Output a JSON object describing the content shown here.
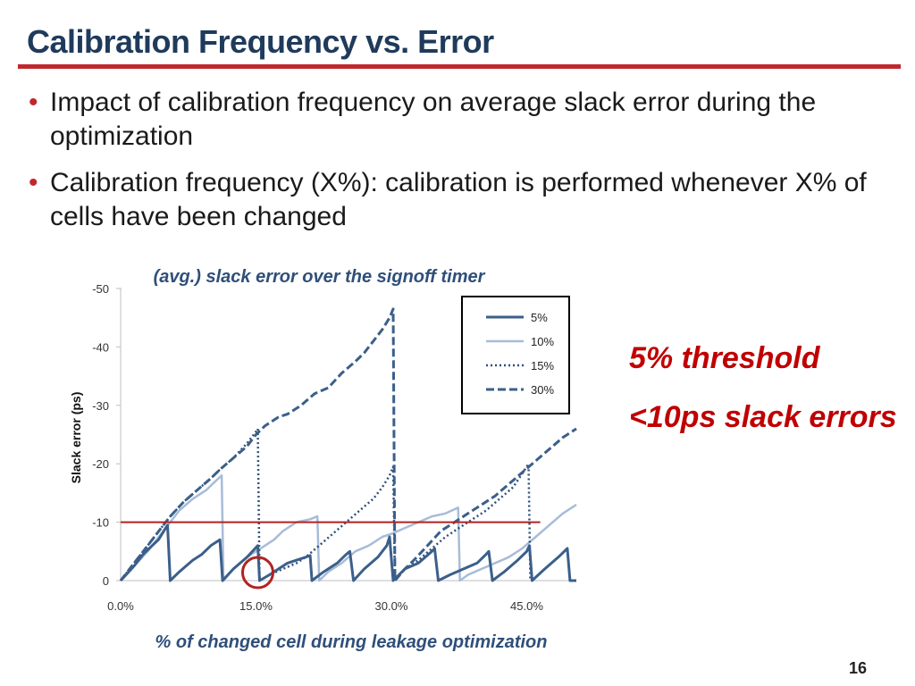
{
  "slide": {
    "title": "Calibration Frequency vs. Error",
    "bullets": [
      "Impact of calibration frequency on average slack error during the optimization",
      "Calibration frequency (X%): calibration is performed whenever X% of cells have been changed"
    ],
    "callouts": [
      "5% threshold",
      "<10ps slack errors"
    ],
    "page_number": "16",
    "accent_color": "#c0282d",
    "title_color": "#1f3b5c"
  },
  "chart_data": {
    "type": "line",
    "title": "(avg.) slack error over the signoff timer",
    "xlabel": "% of changed cell during leakage optimization",
    "ylabel": "Slack error (ps)",
    "xlim": [
      0,
      50.5
    ],
    "ylim": [
      0,
      -50
    ],
    "x_ticks": [
      0,
      15,
      30,
      45
    ],
    "x_tick_labels": [
      "0.0%",
      "15.0%",
      "30.0%",
      "45.0%"
    ],
    "y_ticks": [
      0,
      -10,
      -20,
      -30,
      -40,
      -50
    ],
    "y_tick_labels": [
      "0",
      "-10",
      "-20",
      "-30",
      "-40",
      "-50"
    ],
    "grid": false,
    "legend_position": "top-right",
    "threshold": {
      "y": -10,
      "x_end": 46.5,
      "color": "#b22222"
    },
    "highlight": {
      "x": 15,
      "y": 0,
      "color": "#b22222"
    },
    "series": [
      {
        "name": "5%",
        "style": "solid",
        "color": "#3b5f8a",
        "points": [
          [
            0,
            0
          ],
          [
            0.6,
            -1
          ],
          [
            1.5,
            -2.5
          ],
          [
            2.5,
            -4.5
          ],
          [
            3.5,
            -6
          ],
          [
            4.2,
            -7
          ],
          [
            5,
            -9
          ],
          [
            5.2,
            -9.5
          ],
          [
            5.5,
            0
          ],
          [
            6.5,
            -1.5
          ],
          [
            8,
            -3.5
          ],
          [
            9,
            -4.5
          ],
          [
            10,
            -6
          ],
          [
            11,
            -7
          ],
          [
            11.3,
            0
          ],
          [
            12.5,
            -2
          ],
          [
            14,
            -4
          ],
          [
            15.2,
            -6
          ],
          [
            15.4,
            0
          ],
          [
            16.5,
            -1
          ],
          [
            17.5,
            -2
          ],
          [
            18.5,
            -3
          ],
          [
            19.5,
            -3.5
          ],
          [
            20.5,
            -4
          ],
          [
            21,
            -4.3
          ],
          [
            21.2,
            0
          ],
          [
            22.5,
            -1.5
          ],
          [
            24,
            -3
          ],
          [
            25,
            -4.5
          ],
          [
            25.4,
            -5
          ],
          [
            25.8,
            0
          ],
          [
            27,
            -2
          ],
          [
            28.5,
            -4
          ],
          [
            29.5,
            -6
          ],
          [
            29.8,
            -7.5
          ],
          [
            30.2,
            0
          ],
          [
            31.5,
            -2
          ],
          [
            33,
            -3
          ],
          [
            34.5,
            -5
          ],
          [
            34.8,
            -5.5
          ],
          [
            35.2,
            0
          ],
          [
            36.5,
            -1
          ],
          [
            38,
            -2
          ],
          [
            39.5,
            -3
          ],
          [
            40.5,
            -4.5
          ],
          [
            40.8,
            -5
          ],
          [
            41.2,
            0
          ],
          [
            42.5,
            -1.5
          ],
          [
            44,
            -3.5
          ],
          [
            45,
            -5
          ],
          [
            45.3,
            -6
          ],
          [
            45.6,
            0
          ],
          [
            47,
            -2
          ],
          [
            48.5,
            -4
          ],
          [
            49.5,
            -5.5
          ],
          [
            49.8,
            0
          ],
          [
            50.5,
            0
          ]
        ]
      },
      {
        "name": "10%",
        "style": "solid",
        "color": "#a7bcd8",
        "points": [
          [
            0,
            0
          ],
          [
            1.5,
            -2.5
          ],
          [
            3,
            -5
          ],
          [
            4,
            -7
          ],
          [
            5,
            -9
          ],
          [
            6.5,
            -12
          ],
          [
            8,
            -14
          ],
          [
            9.5,
            -15.5
          ],
          [
            10.5,
            -17
          ],
          [
            11.2,
            -18
          ],
          [
            11.4,
            0
          ],
          [
            12.5,
            -2
          ],
          [
            14,
            -4
          ],
          [
            15,
            -5
          ],
          [
            16,
            -6
          ],
          [
            17,
            -7
          ],
          [
            18,
            -8.5
          ],
          [
            19.5,
            -10
          ],
          [
            21,
            -10.5
          ],
          [
            21.8,
            -11
          ],
          [
            22,
            0
          ],
          [
            23,
            -1.5
          ],
          [
            24.5,
            -3
          ],
          [
            26,
            -5
          ],
          [
            27.5,
            -6
          ],
          [
            29,
            -7.5
          ],
          [
            30,
            -8
          ],
          [
            31.5,
            -9
          ],
          [
            33,
            -10
          ],
          [
            34.5,
            -11
          ],
          [
            36,
            -11.5
          ],
          [
            37.4,
            -12.5
          ],
          [
            37.6,
            0
          ],
          [
            38.5,
            -1
          ],
          [
            40,
            -2
          ],
          [
            41.5,
            -3
          ],
          [
            43,
            -4
          ],
          [
            44.5,
            -5.5
          ],
          [
            46,
            -7.5
          ],
          [
            47.5,
            -9.5
          ],
          [
            49,
            -11.5
          ],
          [
            50,
            -12.5
          ],
          [
            50.5,
            -13
          ]
        ]
      },
      {
        "name": "15%",
        "style": "dotted",
        "color": "#2f507a",
        "points": [
          [
            0,
            0
          ],
          [
            1.5,
            -3
          ],
          [
            3,
            -6
          ],
          [
            4.5,
            -9
          ],
          [
            5.5,
            -11
          ],
          [
            7,
            -13.5
          ],
          [
            8.5,
            -15.5
          ],
          [
            10,
            -17.5
          ],
          [
            11,
            -19
          ],
          [
            12.5,
            -21
          ],
          [
            14,
            -23.5
          ],
          [
            15,
            -25.5
          ],
          [
            15.2,
            -26
          ],
          [
            15.4,
            0
          ],
          [
            16.5,
            -1
          ],
          [
            18,
            -2
          ],
          [
            19.5,
            -3
          ],
          [
            20.5,
            -4
          ],
          [
            22,
            -6
          ],
          [
            23.5,
            -8
          ],
          [
            25,
            -10
          ],
          [
            26.5,
            -12
          ],
          [
            28,
            -14
          ],
          [
            29,
            -16
          ],
          [
            29.8,
            -18
          ],
          [
            30.2,
            -19.5
          ],
          [
            30.4,
            0
          ],
          [
            31.5,
            -2
          ],
          [
            33,
            -3.5
          ],
          [
            34.5,
            -5.5
          ],
          [
            36,
            -7.5
          ],
          [
            37.5,
            -9
          ],
          [
            39,
            -10.5
          ],
          [
            40.5,
            -12
          ],
          [
            42,
            -14
          ],
          [
            43.5,
            -16
          ],
          [
            45,
            -19.5
          ],
          [
            45.2,
            -20
          ],
          [
            45.4,
            0
          ]
        ]
      },
      {
        "name": "30%",
        "style": "dashed",
        "color": "#3b5f8a",
        "points": [
          [
            0,
            0
          ],
          [
            1.5,
            -3
          ],
          [
            3,
            -6
          ],
          [
            4.5,
            -9
          ],
          [
            5.5,
            -11
          ],
          [
            7,
            -13.5
          ],
          [
            8.5,
            -15.5
          ],
          [
            10,
            -17.5
          ],
          [
            11,
            -19
          ],
          [
            12.5,
            -21
          ],
          [
            14,
            -23
          ],
          [
            15,
            -25
          ],
          [
            16,
            -26.5
          ],
          [
            17.5,
            -28
          ],
          [
            18.5,
            -28.5
          ],
          [
            20,
            -30
          ],
          [
            21.5,
            -32
          ],
          [
            23,
            -33
          ],
          [
            24.5,
            -35.5
          ],
          [
            26,
            -37.5
          ],
          [
            27,
            -39
          ],
          [
            28,
            -41
          ],
          [
            29,
            -43
          ],
          [
            29.8,
            -45
          ],
          [
            30.2,
            -46.5
          ],
          [
            30.4,
            0
          ],
          [
            31.5,
            -2
          ],
          [
            32.5,
            -3.5
          ],
          [
            34,
            -6
          ],
          [
            35.5,
            -8.5
          ],
          [
            37,
            -10
          ],
          [
            38.5,
            -11.5
          ],
          [
            40,
            -13
          ],
          [
            41.5,
            -14.5
          ],
          [
            43,
            -16.5
          ],
          [
            44.5,
            -18.5
          ],
          [
            46,
            -20.5
          ],
          [
            47.5,
            -22.5
          ],
          [
            49,
            -24.5
          ],
          [
            50.5,
            -26
          ]
        ]
      }
    ]
  }
}
